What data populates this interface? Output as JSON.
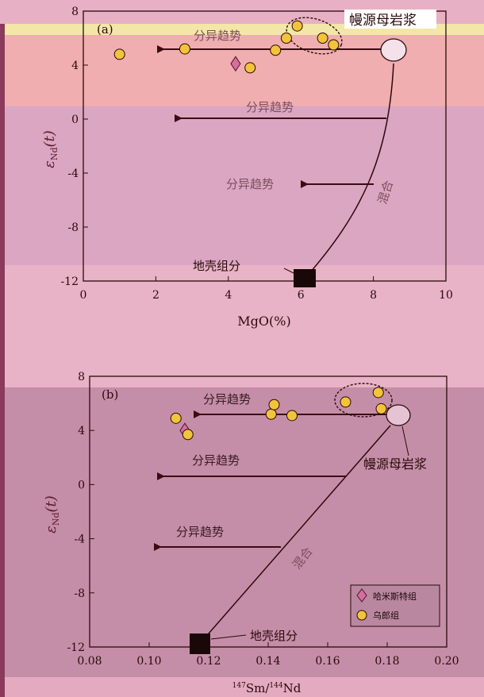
{
  "chart_data": [
    {
      "type": "scatter",
      "panel_label": "(a)",
      "xlabel": "MgO(%)",
      "ylabel_main": "ε",
      "ylabel_sub": "Nd",
      "ylabel_suffix": "(t)",
      "xlim": [
        0,
        10
      ],
      "ylim": [
        -12,
        8
      ],
      "xticks": [
        "0",
        "2",
        "4",
        "6",
        "8",
        "10"
      ],
      "yticks": [
        "-12",
        "-8",
        "-4",
        "0",
        "4",
        "8"
      ],
      "series": [
        {
          "name": "哈米斯特组",
          "marker": "diamond",
          "points": [
            [
              4.2,
              4.1
            ]
          ]
        },
        {
          "name": "乌郎组",
          "marker": "circle",
          "points": [
            [
              1.0,
              4.8
            ],
            [
              2.8,
              5.2
            ],
            [
              4.6,
              3.8
            ],
            [
              5.3,
              5.1
            ],
            [
              5.6,
              6.0
            ],
            [
              5.9,
              6.9
            ],
            [
              6.6,
              6.0
            ],
            [
              6.9,
              5.5
            ]
          ]
        }
      ],
      "annotations": {
        "mantle_magma": "幔源母岩浆",
        "crust_component": "地壳组分",
        "mixing": "混合",
        "trend1": "分异趋势",
        "trend2": "分异趋势",
        "trend3": "分异趋势"
      }
    },
    {
      "type": "scatter",
      "panel_label": "(b)",
      "xlabel_sup1": "147",
      "xlabel_part1": "Sm/",
      "xlabel_sup2": "144",
      "xlabel_part2": "Nd",
      "ylabel_main": "ε",
      "ylabel_sub": "Nd",
      "ylabel_suffix": "(t)",
      "xlim": [
        0.08,
        0.2
      ],
      "ylim": [
        -12,
        8
      ],
      "xticks": [
        "0.08",
        "0.10",
        "0.12",
        "0.14",
        "0.16",
        "0.18",
        "0.20"
      ],
      "yticks": [
        "-12",
        "-8",
        "-4",
        "0",
        "4",
        "8"
      ],
      "series": [
        {
          "name": "哈米斯特组",
          "marker": "diamond",
          "points": [
            [
              0.112,
              4.0
            ]
          ]
        },
        {
          "name": "乌郎组",
          "marker": "circle",
          "points": [
            [
              0.109,
              4.9
            ],
            [
              0.113,
              3.7
            ],
            [
              0.141,
              5.2
            ],
            [
              0.142,
              5.9
            ],
            [
              0.148,
              5.1
            ],
            [
              0.166,
              6.1
            ],
            [
              0.177,
              6.8
            ],
            [
              0.178,
              5.6
            ]
          ]
        }
      ],
      "annotations": {
        "mantle_magma": "幔源母岩浆",
        "crust_component": "地壳组分",
        "mixing": "混合",
        "trend1": "分异趋势",
        "trend2": "分异趋势",
        "trend3": "分异趋势"
      },
      "legend": {
        "placement": "bottom-right",
        "entries": [
          "哈米斯特组",
          "乌郎组"
        ]
      }
    }
  ],
  "colors": {
    "circle_fill": "#f2c43a",
    "diamond_fill": "#d76da0",
    "dark": "#2a0a0a",
    "arrow": "#3b0c12",
    "annotation_text": "#7a4e5e"
  }
}
